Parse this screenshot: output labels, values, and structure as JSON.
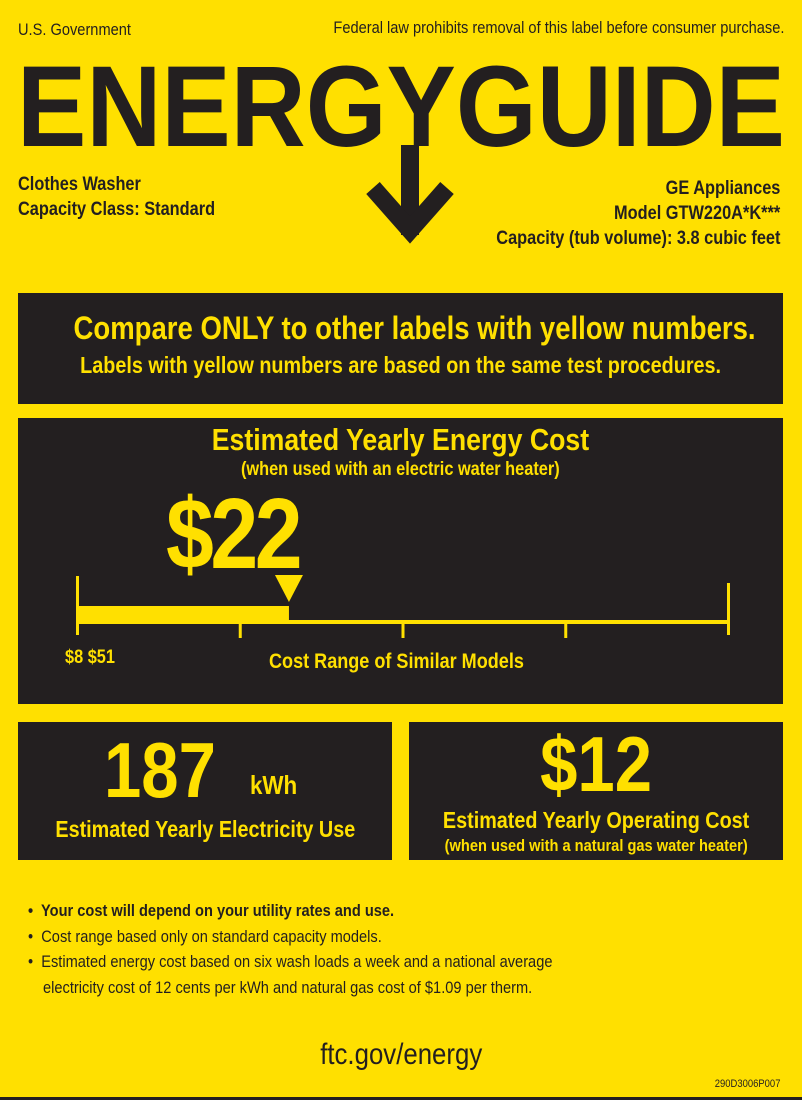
{
  "header": {
    "government": "U.S. Government",
    "notice": "Federal law prohibits removal of this label before consumer purchase.",
    "logo_text": "ENERGYGUIDE"
  },
  "product": {
    "type": "Clothes Washer",
    "capacity_class": "Capacity Class: Standard",
    "manufacturer": "GE Appliances",
    "model": "Model GTW220A*K***",
    "capacity": "Capacity (tub volume): 3.8 cubic feet"
  },
  "compare": {
    "headline": "Compare ONLY to other labels with yellow numbers.",
    "subline": "Labels with yellow numbers are based on the same test procedures."
  },
  "yearly_cost": {
    "title": "Estimated Yearly Energy Cost",
    "subtitle": "(when used with an electric water heater)",
    "value": "$22",
    "range_label": "$8 $51",
    "range_caption": "Cost Range of Similar Models",
    "range_min": 8,
    "range_max": 51,
    "marker_value": 22
  },
  "electricity": {
    "value": "187",
    "unit": "kWh",
    "label": "Estimated Yearly Electricity Use"
  },
  "operating_cost": {
    "value": "$12",
    "label": "Estimated Yearly Operating Cost",
    "sublabel": "(when used with a natural gas water heater)"
  },
  "notes": [
    "Your cost will depend on your utility rates and use.",
    "Cost range based only on standard capacity models.",
    "Estimated energy cost based on six wash loads a week and a national average",
    "electricity cost of 12 cents per kWh and natural gas cost of $1.09 per therm."
  ],
  "footer": {
    "url": "ftc.gov/energy",
    "code": "290D3006P007"
  },
  "colors": {
    "label_yellow": "#FFE000",
    "panel_dark": "#231F20"
  }
}
